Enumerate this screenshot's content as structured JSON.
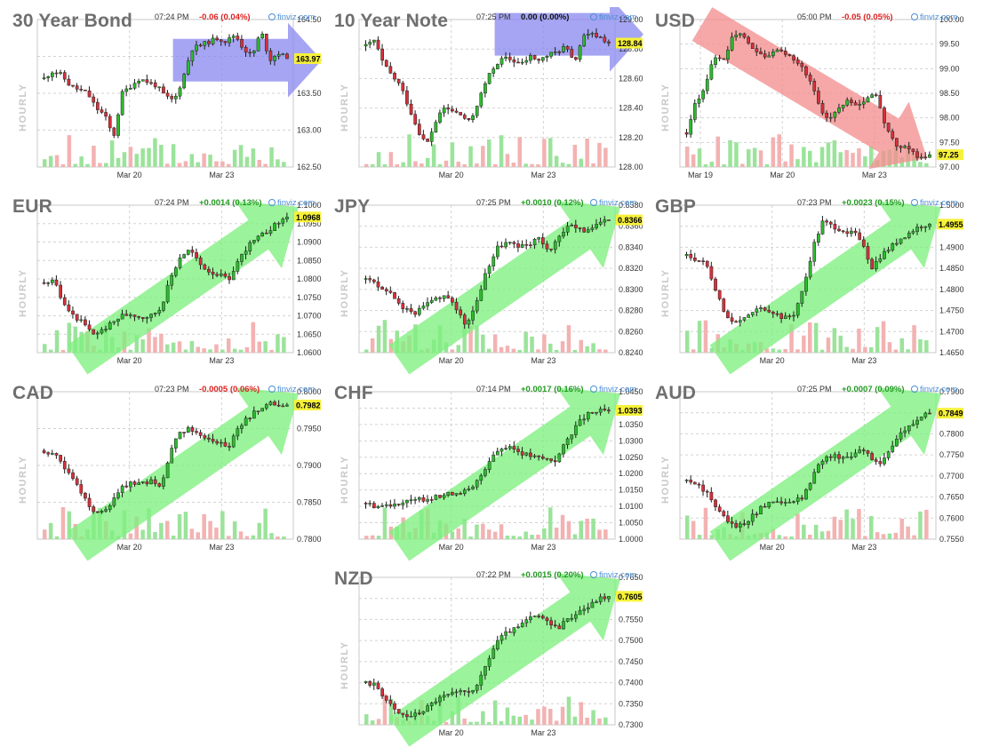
{
  "colors": {
    "up": "#2dbb2d",
    "down": "#d7303a",
    "wick": "#1a1a1a",
    "green_arrow": "#7ff07f",
    "red_arrow": "#f48f8f",
    "blue_arrow": "#8c8cf0",
    "vol_up": "#9be39b",
    "vol_down": "#f3b2b2",
    "grid": "#d3d3d3",
    "last_bg": "#f6f13a",
    "positive": "#229922",
    "negative": "#dd2222",
    "neutral": "#111111",
    "brand": "#4b8fd6"
  },
  "common": {
    "brand": "finviz.com",
    "brand_icon": "finviz-globe-icon",
    "vertical_label": "HOURLY"
  },
  "chart_data": [
    {
      "type": "candlestick",
      "symbol": "30 Year Bond",
      "time": "07:24 PM",
      "change": "-0.06 (0.04%)",
      "change_sign": "neg",
      "last": "163.97",
      "ylim": [
        162.5,
        164.5
      ],
      "yticks": [
        "164.50",
        "164.00",
        "163.50",
        "163.00",
        "162.50"
      ],
      "xticks": [
        "Mar 20",
        "Mar 23"
      ],
      "trend": "up",
      "arrow_color": "blue",
      "arrow_direction": "right",
      "path": [
        163.7,
        163.8,
        163.75,
        163.6,
        163.55,
        163.5,
        163.3,
        163.2,
        162.9,
        163.5,
        163.6,
        163.7,
        163.65,
        163.6,
        163.45,
        163.4,
        163.7,
        164.1,
        164.15,
        164.2,
        164.25,
        164.2,
        164.3,
        164.1,
        164.0,
        164.35,
        163.95,
        164.05,
        163.97
      ]
    },
    {
      "type": "candlestick",
      "symbol": "10 Year Note",
      "time": "07:25 PM",
      "change": "0.00 (0.00%)",
      "change_sign": "zero",
      "last": "128.84",
      "ylim": [
        128.0,
        129.0
      ],
      "yticks": [
        "129.00",
        "128.80",
        "128.60",
        "128.40",
        "128.20",
        "128.00"
      ],
      "xticks": [
        "Mar 20",
        "Mar 23"
      ],
      "trend": "up",
      "arrow_color": "blue",
      "arrow_direction": "right",
      "path": [
        128.82,
        128.86,
        128.7,
        128.62,
        128.55,
        128.4,
        128.25,
        128.15,
        128.3,
        128.4,
        128.38,
        128.35,
        128.3,
        128.45,
        128.6,
        128.7,
        128.74,
        128.72,
        128.7,
        128.75,
        128.72,
        128.76,
        128.78,
        128.82,
        128.7,
        128.88,
        128.9,
        128.88,
        128.84
      ]
    },
    {
      "type": "candlestick",
      "symbol": "USD",
      "time": "05:00 PM",
      "change": "-0.05 (0.05%)",
      "change_sign": "neg",
      "last": "97.25",
      "ylim": [
        97.0,
        100.0
      ],
      "yticks": [
        "100.00",
        "99.50",
        "99.00",
        "98.50",
        "98.00",
        "97.50",
        "97.00"
      ],
      "xticks": [
        "Mar 19",
        "Mar 20",
        "Mar 23"
      ],
      "trend": "down",
      "arrow_color": "red",
      "arrow_direction": "down-right",
      "path": [
        97.7,
        98.3,
        98.6,
        99.3,
        99.1,
        99.6,
        99.7,
        99.5,
        99.3,
        99.25,
        99.35,
        99.3,
        99.2,
        99.0,
        98.6,
        98.1,
        98.0,
        98.25,
        98.35,
        98.2,
        98.4,
        98.45,
        97.9,
        97.5,
        97.4,
        97.35,
        97.15,
        97.25
      ]
    },
    {
      "type": "candlestick",
      "symbol": "EUR",
      "time": "07:24 PM",
      "change": "+0.0014 (0.13%)",
      "change_sign": "pos",
      "last": "1.0968",
      "ylim": [
        1.06,
        1.1
      ],
      "yticks": [
        "1.1000",
        "1.0950",
        "1.0900",
        "1.0850",
        "1.0800",
        "1.0750",
        "1.0700",
        "1.0650",
        "1.0600"
      ],
      "xticks": [
        "Mar 20",
        "Mar 23"
      ],
      "trend": "up",
      "arrow_color": "green",
      "arrow_direction": "up-right",
      "path": [
        1.079,
        1.08,
        1.073,
        1.07,
        1.068,
        1.065,
        1.066,
        1.068,
        1.07,
        1.0705,
        1.0695,
        1.07,
        1.072,
        1.08,
        1.086,
        1.088,
        1.084,
        1.082,
        1.081,
        1.08,
        1.085,
        1.089,
        1.091,
        1.093,
        1.095,
        1.0968
      ]
    },
    {
      "type": "candlestick",
      "symbol": "JPY",
      "time": "07:25 PM",
      "change": "+0.0010 (0.12%)",
      "change_sign": "pos",
      "last": "0.8366",
      "ylim": [
        0.824,
        0.838
      ],
      "yticks": [
        "0.8380",
        "0.8360",
        "0.8340",
        "0.8320",
        "0.8300",
        "0.8280",
        "0.8260",
        "0.8240"
      ],
      "xticks": [
        "Mar 20",
        "Mar 23"
      ],
      "trend": "up",
      "arrow_color": "green",
      "arrow_direction": "up-right",
      "path": [
        0.831,
        0.8305,
        0.83,
        0.829,
        0.828,
        0.8278,
        0.8285,
        0.8292,
        0.8295,
        0.828,
        0.8265,
        0.829,
        0.832,
        0.834,
        0.8345,
        0.834,
        0.8342,
        0.835,
        0.8335,
        0.835,
        0.836,
        0.8358,
        0.8355,
        0.8362,
        0.8366
      ]
    },
    {
      "type": "candlestick",
      "symbol": "GBP",
      "time": "07:23 PM",
      "change": "+0.0023 (0.15%)",
      "change_sign": "pos",
      "last": "1.4955",
      "ylim": [
        1.465,
        1.5
      ],
      "yticks": [
        "1.5000",
        "1.4950",
        "1.4900",
        "1.4850",
        "1.4800",
        "1.4750",
        "1.4700",
        "1.4650"
      ],
      "xticks": [
        "Mar 20",
        "Mar 23"
      ],
      "trend": "up",
      "arrow_color": "green",
      "arrow_direction": "up-right",
      "path": [
        1.488,
        1.487,
        1.486,
        1.48,
        1.474,
        1.472,
        1.473,
        1.475,
        1.4755,
        1.4745,
        1.473,
        1.474,
        1.48,
        1.49,
        1.496,
        1.495,
        1.494,
        1.4935,
        1.492,
        1.485,
        1.488,
        1.49,
        1.492,
        1.4935,
        1.495,
        1.4955
      ]
    },
    {
      "type": "candlestick",
      "symbol": "CAD",
      "time": "07:23 PM",
      "change": "-0.0005 (0.06%)",
      "change_sign": "neg",
      "last": "0.7982",
      "ylim": [
        0.78,
        0.8
      ],
      "yticks": [
        "0.8000",
        "0.7950",
        "0.7900",
        "0.7850",
        "0.7800"
      ],
      "xticks": [
        "Mar 20",
        "Mar 23"
      ],
      "trend": "up",
      "arrow_color": "green",
      "arrow_direction": "up-right",
      "path": [
        0.792,
        0.7915,
        0.79,
        0.788,
        0.786,
        0.784,
        0.7835,
        0.785,
        0.787,
        0.7878,
        0.7875,
        0.7878,
        0.787,
        0.792,
        0.7945,
        0.795,
        0.794,
        0.7935,
        0.793,
        0.7925,
        0.795,
        0.7965,
        0.7975,
        0.7985,
        0.798,
        0.7982
      ]
    },
    {
      "type": "candlestick",
      "symbol": "CHF",
      "time": "07:14 PM",
      "change": "+0.0017 (0.16%)",
      "change_sign": "pos",
      "last": "1.0393",
      "ylim": [
        1.0,
        1.045
      ],
      "yticks": [
        "1.0450",
        "1.0400",
        "1.0350",
        "1.0300",
        "1.0250",
        "1.0200",
        "1.0150",
        "1.0100",
        "1.0050",
        "1.0000"
      ],
      "xticks": [
        "Mar 20",
        "Mar 23"
      ],
      "trend": "up",
      "arrow_color": "green",
      "arrow_direction": "up-right",
      "path": [
        1.011,
        1.01,
        1.0105,
        1.011,
        1.0115,
        1.012,
        1.0125,
        1.013,
        1.014,
        1.0145,
        1.015,
        1.02,
        1.026,
        1.028,
        1.0275,
        1.026,
        1.025,
        1.0245,
        1.024,
        1.03,
        1.035,
        1.038,
        1.039,
        1.0393
      ]
    },
    {
      "type": "candlestick",
      "symbol": "AUD",
      "time": "07:25 PM",
      "change": "+0.0007 (0.09%)",
      "change_sign": "pos",
      "last": "0.7849",
      "ylim": [
        0.755,
        0.79
      ],
      "yticks": [
        "0.7900",
        "0.7850",
        "0.7800",
        "0.7750",
        "0.7700",
        "0.7650",
        "0.7600",
        "0.7550"
      ],
      "xticks": [
        "Mar 20",
        "Mar 23"
      ],
      "trend": "up",
      "arrow_color": "green",
      "arrow_direction": "up-right",
      "path": [
        0.769,
        0.768,
        0.766,
        0.763,
        0.76,
        0.758,
        0.759,
        0.761,
        0.763,
        0.764,
        0.7635,
        0.764,
        0.765,
        0.77,
        0.774,
        0.775,
        0.7745,
        0.775,
        0.777,
        0.774,
        0.773,
        0.777,
        0.78,
        0.782,
        0.784,
        0.7849
      ]
    },
    {
      "type": "candlestick",
      "symbol": "NZD",
      "time": "07:22 PM",
      "change": "+0.0015 (0.20%)",
      "change_sign": "pos",
      "last": "0.7605",
      "ylim": [
        0.73,
        0.765
      ],
      "yticks": [
        "0.7650",
        "0.7600",
        "0.7550",
        "0.7500",
        "0.7450",
        "0.7400",
        "0.7350",
        "0.7300"
      ],
      "xticks": [
        "Mar 20",
        "Mar 23"
      ],
      "trend": "up",
      "arrow_color": "green",
      "arrow_direction": "up-right",
      "path": [
        0.74,
        0.7395,
        0.736,
        0.733,
        0.732,
        0.7325,
        0.734,
        0.736,
        0.737,
        0.7375,
        0.738,
        0.739,
        0.745,
        0.75,
        0.752,
        0.753,
        0.755,
        0.756,
        0.754,
        0.753,
        0.755,
        0.757,
        0.758,
        0.76,
        0.7605
      ]
    }
  ]
}
